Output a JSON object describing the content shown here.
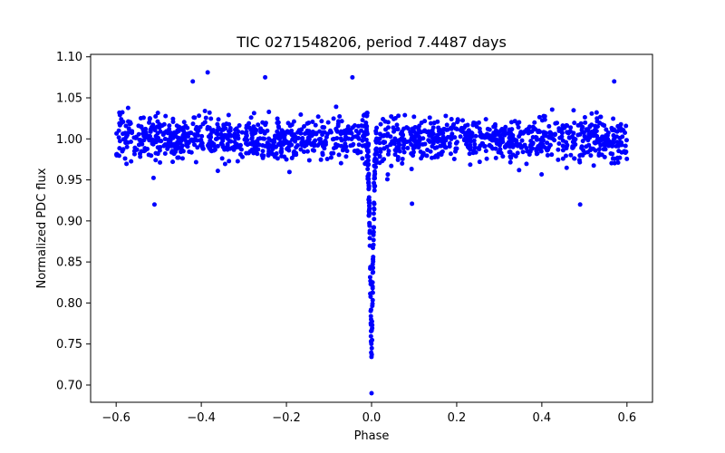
{
  "chart_data": {
    "type": "scatter",
    "title": "TIC 0271548206, period 7.4487 days",
    "xlabel": "Phase",
    "ylabel": "Normalized PDC flux",
    "xlim": [
      -0.66,
      0.66
    ],
    "ylim": [
      0.679,
      1.103
    ],
    "xticks": [
      -0.6,
      -0.4,
      -0.2,
      0.0,
      0.2,
      0.4,
      0.6
    ],
    "xtick_labels": [
      "−0.6",
      "−0.4",
      "−0.2",
      "0.0",
      "0.2",
      "0.4",
      "0.6"
    ],
    "yticks": [
      0.7,
      0.75,
      0.8,
      0.85,
      0.9,
      0.95,
      1.0,
      1.05,
      1.1
    ],
    "ytick_labels": [
      "0.70",
      "0.75",
      "0.80",
      "0.85",
      "0.90",
      "0.95",
      "1.00",
      "1.05",
      "1.10"
    ],
    "grid": false,
    "marker_color": "#0000ff",
    "series": [
      {
        "name": "PDC flux",
        "baseline": 1.0,
        "scatter_sd": 0.013,
        "phase_range": [
          -0.6,
          0.6
        ],
        "point_count": 1400,
        "transit": {
          "center": 0.0,
          "depth_min": 0.69,
          "half_width": 0.012
        },
        "notable_points": [
          {
            "x": -0.385,
            "y": 1.081
          },
          {
            "x": -0.045,
            "y": 1.075
          },
          {
            "x": -0.25,
            "y": 1.075
          },
          {
            "x": -0.42,
            "y": 1.07
          },
          {
            "x": 0.57,
            "y": 1.07
          },
          {
            "x": -0.51,
            "y": 0.92
          },
          {
            "x": 0.49,
            "y": 0.92
          },
          {
            "x": 0.095,
            "y": 0.921
          },
          {
            "x": 0.0,
            "y": 0.69
          }
        ]
      }
    ]
  }
}
